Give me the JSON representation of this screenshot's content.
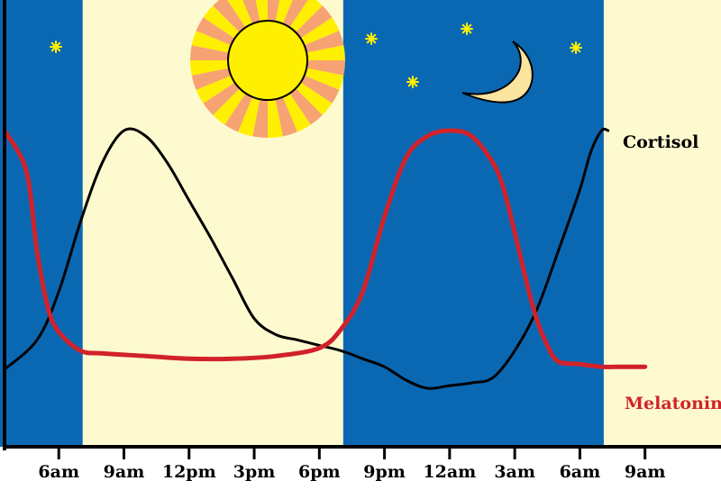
{
  "chart_data": {
    "type": "line",
    "title": "",
    "xlabel": "",
    "ylabel": "",
    "x_ticks": [
      "6am",
      "9am",
      "12pm",
      "3pm",
      "6pm",
      "9pm",
      "12am",
      "3am",
      "6am",
      "9am"
    ],
    "x_tick_hours": [
      6,
      9,
      12,
      15,
      18,
      21,
      24,
      27,
      30,
      33
    ],
    "xlim": [
      3.5,
      36.5
    ],
    "ylim": [
      0,
      100
    ],
    "night_periods": [
      [
        3.5,
        7.1
      ],
      [
        19.1,
        31.1
      ]
    ],
    "grid": false,
    "series": [
      {
        "name": "Cortisol",
        "color": "#000000",
        "x": [
          3.5,
          5,
          6,
          7,
          8,
          9,
          10,
          11,
          12,
          13,
          14,
          15,
          16,
          17,
          18,
          19,
          20,
          21,
          22,
          23,
          24,
          25,
          26,
          27,
          28,
          29,
          30,
          30.5,
          31,
          31.3
        ],
        "y": [
          11,
          22,
          40,
          66,
          88,
          100,
          98,
          88,
          74,
          60,
          45,
          30,
          24,
          22,
          20,
          18,
          15,
          12,
          7,
          4,
          5,
          6,
          8,
          18,
          33,
          55,
          78,
          92,
          100,
          100
        ]
      },
      {
        "name": "Melatonin",
        "color": "#d1222b",
        "x": [
          3.5,
          4.5,
          5,
          5.5,
          6,
          7,
          8,
          10,
          12,
          14,
          16,
          18,
          19,
          20,
          21,
          22,
          23,
          24,
          25,
          26,
          26.5,
          27,
          27.5,
          28,
          28.5,
          29,
          30,
          31,
          32,
          33
        ],
        "y": [
          100,
          85,
          55,
          34,
          25,
          18,
          17,
          16,
          15,
          15,
          16,
          19,
          26,
          40,
          68,
          90,
          98,
          100,
          98,
          88,
          78,
          62,
          45,
          30,
          20,
          14,
          13,
          12,
          12,
          12
        ]
      }
    ]
  }
}
